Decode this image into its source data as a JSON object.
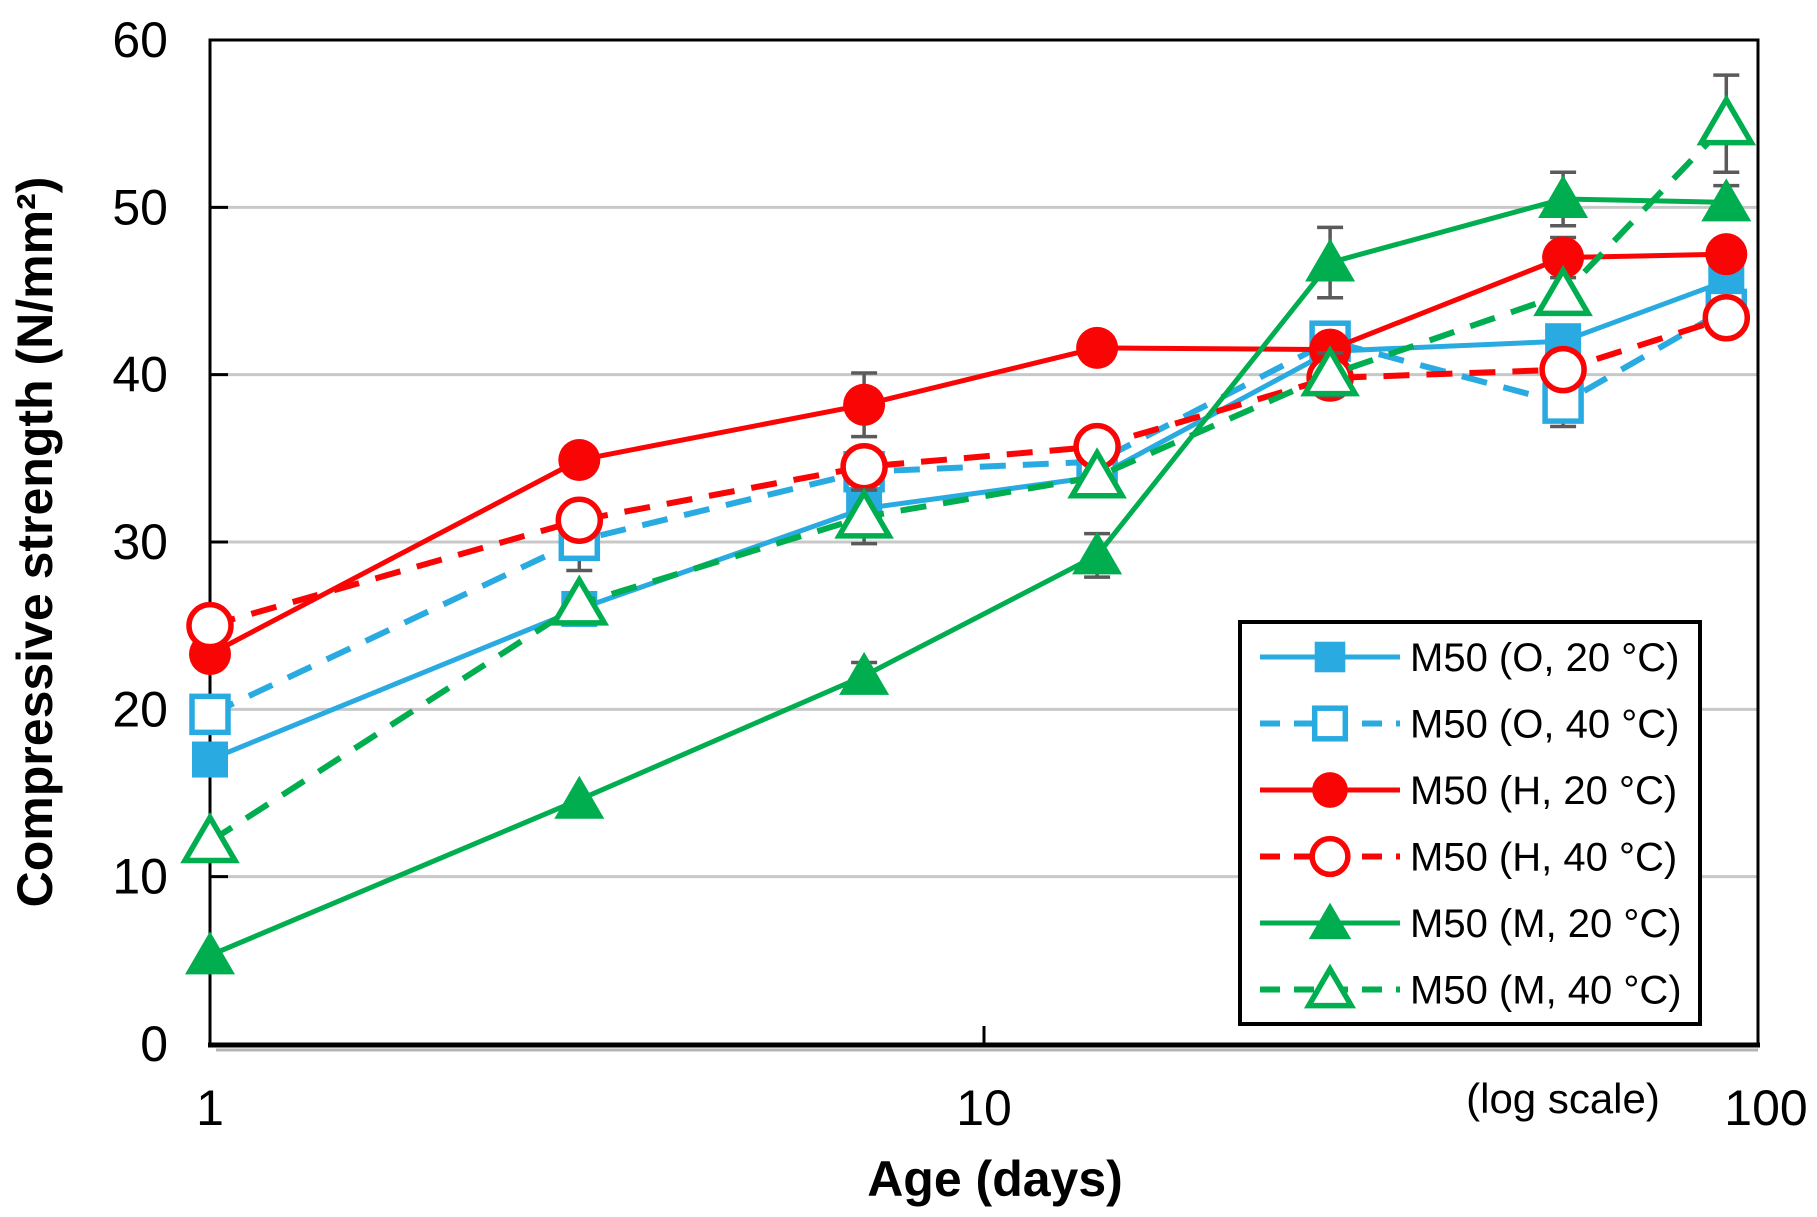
{
  "figure": {
    "background": "#FFFFFF"
  },
  "colors": {
    "cyan": "#29ABE2",
    "red": "#FA0505",
    "green": "#00AD4F",
    "grid": "#C8C8C8",
    "error_bar": "#5A5A5A",
    "axis": "#000000"
  },
  "chart_data": {
    "type": "line",
    "title": "",
    "xlabel": "Age (days)",
    "ylabel": "Compressive strength (N/mm²)",
    "x_note": "(log scale)",
    "x_scale": "log",
    "xlim": [
      1,
      100
    ],
    "ylim": [
      0,
      60
    ],
    "x_ticks": [
      1,
      10,
      100
    ],
    "y_ticks": [
      0,
      10,
      20,
      30,
      40,
      50,
      60
    ],
    "grid": "horizontal",
    "legend_position": "inside bottom-right",
    "x": [
      1,
      3,
      7,
      14,
      28,
      56,
      91
    ],
    "series": [
      {
        "id": "O20",
        "name": "M50 (O, 20 °C)",
        "color": "#29ABE2",
        "line": "solid",
        "marker": "square",
        "marker_fill": "filled",
        "values": [
          17.0,
          26.0,
          32.0,
          33.9,
          41.4,
          42.0,
          45.6
        ],
        "errors": [
          0,
          0,
          0,
          0,
          0,
          0,
          0
        ]
      },
      {
        "id": "O40",
        "name": "M50 (O, 40 °C)",
        "color": "#29ABE2",
        "line": "dashed",
        "marker": "square",
        "marker_fill": "open",
        "values": [
          19.7,
          30.1,
          34.2,
          34.8,
          42.0,
          38.3,
          43.9
        ],
        "errors": [
          0.8,
          1.8,
          0,
          0,
          0.9,
          1.4,
          0.5
        ]
      },
      {
        "id": "H20",
        "name": "M50 (H, 20 °C)",
        "color": "#FA0505",
        "line": "solid",
        "marker": "circle",
        "marker_fill": "filled",
        "values": [
          23.3,
          34.9,
          38.2,
          41.6,
          41.5,
          47.0,
          47.2
        ],
        "errors": [
          0,
          0,
          1.9,
          0.4,
          0,
          1.2,
          0.9
        ]
      },
      {
        "id": "H40",
        "name": "M50 (H, 40 °C)",
        "color": "#FA0505",
        "line": "dashed",
        "marker": "circle",
        "marker_fill": "open",
        "values": [
          25.0,
          31.3,
          34.5,
          35.7,
          39.8,
          40.3,
          43.4
        ],
        "errors": [
          0,
          0,
          0,
          0.4,
          0,
          0,
          0.4
        ]
      },
      {
        "id": "M20",
        "name": "M50 (M, 20 °C)",
        "color": "#00AD4F",
        "line": "solid",
        "marker": "triangle",
        "marker_fill": "filled",
        "values": [
          5.3,
          14.6,
          22.0,
          29.2,
          46.7,
          50.5,
          50.3
        ],
        "errors": [
          0,
          0,
          0.8,
          1.3,
          2.1,
          1.6,
          1.0
        ]
      },
      {
        "id": "M40",
        "name": "M50 (M, 40 °C)",
        "color": "#00AD4F",
        "line": "dashed",
        "marker": "triangle",
        "marker_fill": "open",
        "values": [
          12.1,
          26.3,
          31.5,
          33.9,
          40.0,
          44.8,
          55.0
        ],
        "errors": [
          0,
          0,
          1.6,
          0,
          1.3,
          0,
          2.9
        ]
      }
    ]
  }
}
